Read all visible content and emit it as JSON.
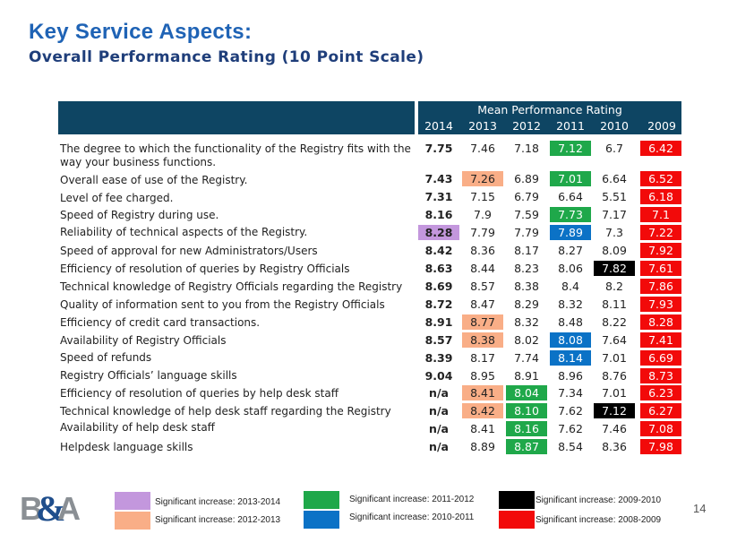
{
  "title": "Key Service Aspects:",
  "subtitle": "Overall Performance Rating (10 Point Scale)",
  "table": {
    "group_header": "Mean Performance Rating",
    "years": [
      "2014",
      "2013",
      "2012",
      "2011",
      "2010",
      "2009"
    ],
    "rows": [
      {
        "label": "The degree to which the functionality of the Registry fits with the\nway your business functions.",
        "values": [
          "7.75",
          "7.46",
          "7.18",
          "7.12",
          "6.7",
          "6.42"
        ],
        "highlights": [
          null,
          null,
          null,
          "2011-2012",
          null,
          "2008-2009"
        ]
      },
      {
        "label": "Overall ease of use of the Registry.",
        "values": [
          "7.43",
          "7.26",
          "6.89",
          "7.01",
          "6.64",
          "6.52"
        ],
        "highlights": [
          null,
          "2012-2013",
          null,
          "2011-2012",
          null,
          "2008-2009"
        ]
      },
      {
        "label": "Level of  fee charged.",
        "values": [
          "7.31",
          "7.15",
          "6.79",
          "6.64",
          "5.51",
          "6.18"
        ],
        "highlights": [
          null,
          null,
          null,
          null,
          null,
          "2008-2009"
        ]
      },
      {
        "label": "Speed of Registry during use.",
        "values": [
          "8.16",
          "7.9",
          "7.59",
          "7.73",
          "7.17",
          "7.1"
        ],
        "highlights": [
          null,
          null,
          null,
          "2011-2012",
          null,
          "2008-2009"
        ]
      },
      {
        "label": "Reliability of technical aspects of the Registry.",
        "values": [
          "8.28",
          "7.79",
          "7.79",
          "7.89",
          "7.3",
          "7.22"
        ],
        "highlights": [
          "2013-2014",
          null,
          null,
          "2010-2011",
          null,
          "2008-2009"
        ]
      },
      {
        "label": "Speed of approval for new Administrators/Users",
        "values": [
          "8.42",
          "8.36",
          "8.17",
          "8.27",
          "8.09",
          "7.92"
        ],
        "highlights": [
          null,
          null,
          null,
          null,
          null,
          "2008-2009"
        ]
      },
      {
        "label": "Efficiency of resolution of queries by Registry Officials",
        "values": [
          "8.63",
          "8.44",
          "8.23",
          "8.06",
          "7.82",
          "7.61"
        ],
        "highlights": [
          null,
          null,
          null,
          null,
          "2009-2010",
          "2008-2009"
        ]
      },
      {
        "label": "Technical knowledge of Registry Officials regarding the Registry",
        "values": [
          "8.69",
          "8.57",
          "8.38",
          "8.4",
          "8.2",
          "7.86"
        ],
        "highlights": [
          null,
          null,
          null,
          null,
          null,
          "2008-2009"
        ]
      },
      {
        "label": "Quality of information sent to you from the Registry Officials",
        "values": [
          "8.72",
          "8.47",
          "8.29",
          "8.32",
          "8.11",
          "7.93"
        ],
        "highlights": [
          null,
          null,
          null,
          null,
          null,
          "2008-2009"
        ]
      },
      {
        "label": "Efficiency of credit card transactions.",
        "values": [
          "8.91",
          "8.77",
          "8.32",
          "8.48",
          "8.22",
          "8.28"
        ],
        "highlights": [
          null,
          "2012-2013",
          null,
          null,
          null,
          "2008-2009"
        ]
      },
      {
        "label": "Availability of Registry Officials",
        "values": [
          "8.57",
          "8.38",
          "8.02",
          "8.08",
          "7.64",
          "7.41"
        ],
        "highlights": [
          null,
          "2012-2013",
          null,
          "2010-2011",
          null,
          "2008-2009"
        ]
      },
      {
        "label": "Speed of refunds",
        "values": [
          "8.39",
          "8.17",
          "7.74",
          "8.14",
          "7.01",
          "6.69"
        ],
        "highlights": [
          null,
          null,
          null,
          "2010-2011",
          null,
          "2008-2009"
        ]
      },
      {
        "label": "Registry Officials’ language skills",
        "values": [
          "9.04",
          "8.95",
          "8.91",
          "8.96",
          "8.76",
          "8.73"
        ],
        "highlights": [
          null,
          null,
          null,
          null,
          null,
          "2008-2009"
        ]
      },
      {
        "label": "Efficiency of resolution of queries by help desk staff",
        "values": [
          "n/a",
          "8.41",
          "8.04",
          "7.34",
          "7.01",
          "6.23"
        ],
        "highlights": [
          null,
          "2012-2013",
          "2011-2012",
          null,
          null,
          "2008-2009"
        ]
      },
      {
        "label": "Technical knowledge of  help desk staff regarding the Registry",
        "values": [
          "n/a",
          "8.42",
          "8.10",
          "7.62",
          "7.12",
          "6.27"
        ],
        "highlights": [
          null,
          "2012-2013",
          "2011-2012",
          null,
          "2009-2010",
          "2008-2009"
        ]
      },
      {
        "label": "Availability of help desk staff",
        "values": [
          "n/a",
          "8.41",
          "8.16",
          "7.62",
          "7.46",
          "7.08"
        ],
        "highlights": [
          null,
          null,
          "2011-2012",
          null,
          null,
          "2008-2009"
        ]
      },
      {
        "label": "Helpdesk language skills",
        "values": [
          "n/a",
          "8.89",
          "8.87",
          "8.54",
          "8.36",
          "7.98"
        ],
        "highlights": [
          null,
          null,
          "2011-2012",
          null,
          null,
          "2008-2009"
        ]
      }
    ]
  },
  "legend": [
    {
      "key": "2013-2014",
      "label": "Significant increase: 2013-2014",
      "color": "#c397dd"
    },
    {
      "key": "2012-2013",
      "label": "Significant increase: 2012-2013",
      "color": "#f9ae87"
    },
    {
      "key": "2011-2012",
      "label": "Significant increase: 2011-2012",
      "color": "#1fa84a"
    },
    {
      "key": "2010-2011",
      "label": "Significant increase: 2010-2011",
      "color": "#0b72c6"
    },
    {
      "key": "2009-2010",
      "label": "Significant increase: 2009-2010",
      "color": "#000000"
    },
    {
      "key": "2008-2009",
      "label": "Significant increase: 2008-2009",
      "color": "#f20a0a"
    }
  ],
  "logo_text": "B&A",
  "page_number": "14"
}
